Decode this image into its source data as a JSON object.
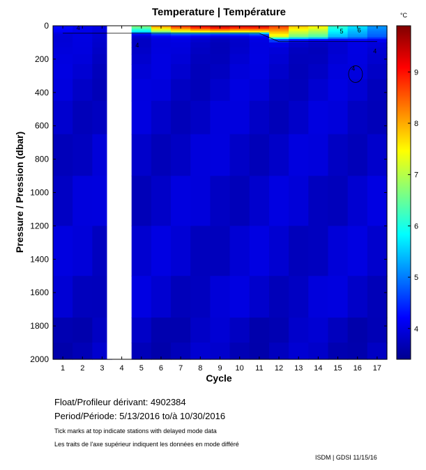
{
  "chart_data": {
    "type": "heatmap",
    "title": "Temperature | Température",
    "xlabel": "Cycle",
    "ylabel": "Pressure / Pression (dbar)",
    "colorbar_unit": "°C",
    "x": [
      1,
      2,
      3,
      4,
      5,
      6,
      7,
      8,
      9,
      10,
      11,
      12,
      13,
      14,
      15,
      16,
      17
    ],
    "x_ticks": [
      "1",
      "2",
      "3",
      "4",
      "5",
      "6",
      "7",
      "8",
      "9",
      "10",
      "11",
      "12",
      "13",
      "14",
      "15",
      "16",
      "17"
    ],
    "missing_cycles": [
      4
    ],
    "ylim": [
      0,
      2000
    ],
    "y_ticks": [
      "0",
      "200",
      "400",
      "600",
      "800",
      "1000",
      "1200",
      "1400",
      "1600",
      "1800",
      "2000"
    ],
    "colorbar_range": [
      3.4,
      9.9
    ],
    "colorbar_ticks": [
      "4",
      "5",
      "6",
      "7",
      "8",
      "9"
    ],
    "surface_temperature": [
      4.3,
      4.1,
      4.0,
      null,
      6.8,
      8.3,
      9.0,
      9.5,
      9.8,
      9.6,
      9.6,
      8.8,
      7.9,
      7.6,
      6.2,
      5.7,
      5.2
    ],
    "deep_temperature_range": [
      3.5,
      4.0
    ],
    "contour_labels": [
      "4",
      "4",
      "4",
      "4",
      "5",
      "6"
    ]
  },
  "info": {
    "float_label": "Float/Profileur dérivant:",
    "float_id": "4902384",
    "period_label": "Period/Période:",
    "period_start": "5/13/2016",
    "period_sep": "to/à",
    "period_end": "10/30/2016",
    "note_en": "Tick marks at top indicate stations with delayed mode data",
    "note_fr": "Les traits de l'axe supérieur indiquent les données en mode différé"
  },
  "footer": "ISDM | GDSI  11/15/16",
  "colors": {
    "deep": "#1f2fc8",
    "deepest": "#1626b8",
    "missing": "#ffffff"
  }
}
